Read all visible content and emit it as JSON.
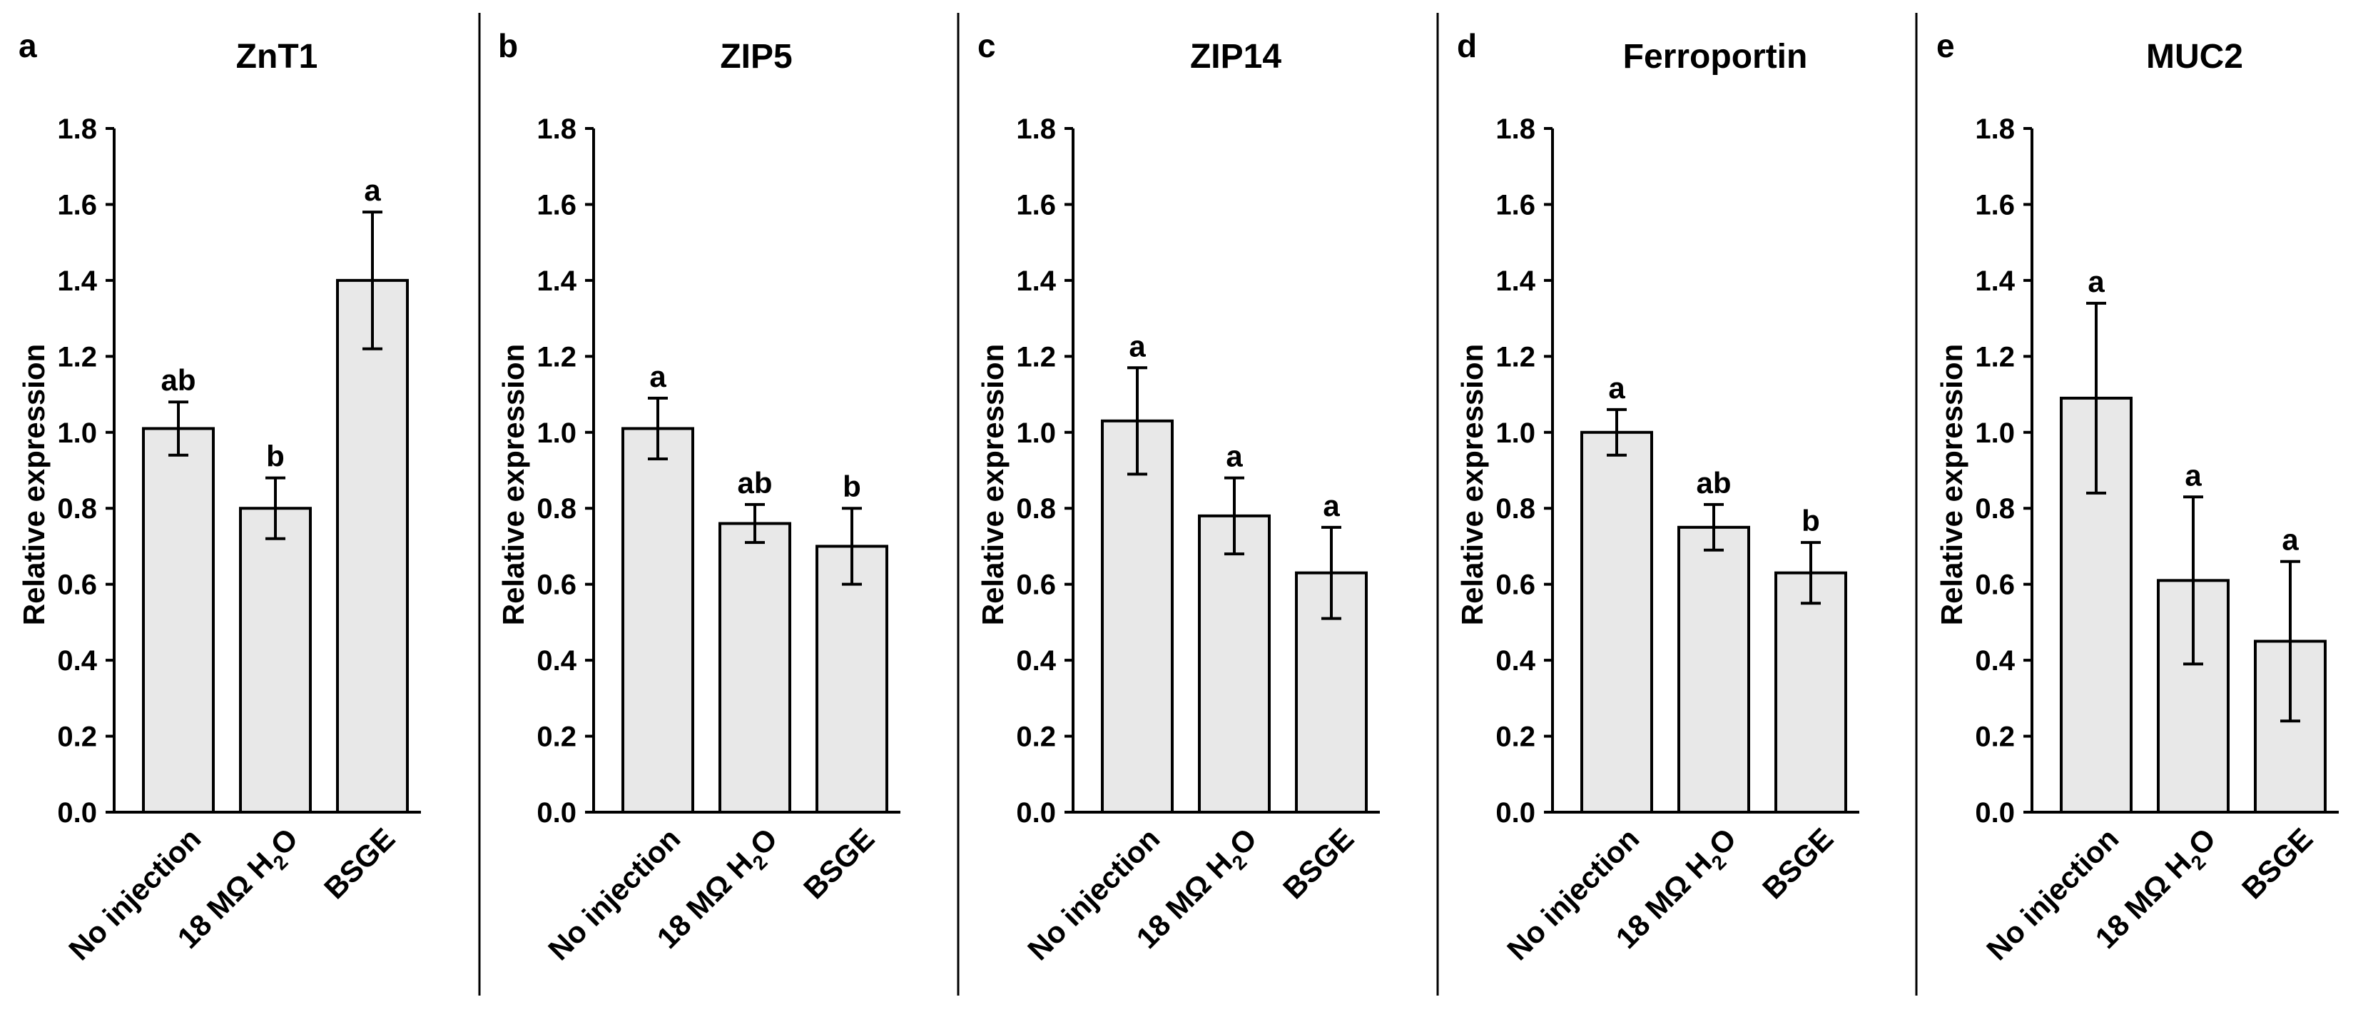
{
  "chart_data": [
    {
      "type": "bar",
      "panel_letter": "a",
      "title": "ZnT1",
      "ylabel": "Relative expression",
      "xlabel": "",
      "ylim": [
        0,
        1.8
      ],
      "yticks": [
        "0.0",
        "0.2",
        "0.4",
        "0.6",
        "0.8",
        "1.0",
        "1.2",
        "1.4",
        "1.6",
        "1.8"
      ],
      "categories": [
        "No injection",
        "18 MΩ H",
        "BSGE"
      ],
      "category_suffix": [
        "",
        "O",
        ""
      ],
      "category_subscript": [
        "",
        "2",
        ""
      ],
      "values": [
        1.01,
        0.8,
        1.4
      ],
      "errors": [
        0.07,
        0.08,
        0.18
      ],
      "letters": [
        "ab",
        "b",
        "a"
      ]
    },
    {
      "type": "bar",
      "panel_letter": "b",
      "title": "ZIP5",
      "ylabel": "Relative expression",
      "xlabel": "",
      "ylim": [
        0,
        1.8
      ],
      "yticks": [
        "0.0",
        "0.2",
        "0.4",
        "0.6",
        "0.8",
        "1.0",
        "1.2",
        "1.4",
        "1.6",
        "1.8"
      ],
      "categories": [
        "No injection",
        "18 MΩ H",
        "BSGE"
      ],
      "category_suffix": [
        "",
        "O",
        ""
      ],
      "category_subscript": [
        "",
        "2",
        ""
      ],
      "values": [
        1.01,
        0.76,
        0.7
      ],
      "errors": [
        0.08,
        0.05,
        0.1
      ],
      "letters": [
        "a",
        "ab",
        "b"
      ]
    },
    {
      "type": "bar",
      "panel_letter": "c",
      "title": "ZIP14",
      "ylabel": "Relative expression",
      "xlabel": "",
      "ylim": [
        0,
        1.8
      ],
      "yticks": [
        "0.0",
        "0.2",
        "0.4",
        "0.6",
        "0.8",
        "1.0",
        "1.2",
        "1.4",
        "1.6",
        "1.8"
      ],
      "categories": [
        "No injection",
        "18 MΩ H",
        "BSGE"
      ],
      "category_suffix": [
        "",
        "O",
        ""
      ],
      "category_subscript": [
        "",
        "2",
        ""
      ],
      "values": [
        1.03,
        0.78,
        0.63
      ],
      "errors": [
        0.14,
        0.1,
        0.12
      ],
      "letters": [
        "a",
        "a",
        "a"
      ]
    },
    {
      "type": "bar",
      "panel_letter": "d",
      "title": "Ferroportin",
      "ylabel": "Relative expression",
      "xlabel": "",
      "ylim": [
        0,
        1.8
      ],
      "yticks": [
        "0.0",
        "0.2",
        "0.4",
        "0.6",
        "0.8",
        "1.0",
        "1.2",
        "1.4",
        "1.6",
        "1.8"
      ],
      "categories": [
        "No injection",
        "18 MΩ H",
        "BSGE"
      ],
      "category_suffix": [
        "",
        "O",
        ""
      ],
      "category_subscript": [
        "",
        "2",
        ""
      ],
      "values": [
        1.0,
        0.75,
        0.63
      ],
      "errors": [
        0.06,
        0.06,
        0.08
      ],
      "letters": [
        "a",
        "ab",
        "b"
      ]
    },
    {
      "type": "bar",
      "panel_letter": "e",
      "title": "MUC2",
      "ylabel": "Relative expression",
      "xlabel": "",
      "ylim": [
        0,
        1.8
      ],
      "yticks": [
        "0.0",
        "0.2",
        "0.4",
        "0.6",
        "0.8",
        "1.0",
        "1.2",
        "1.4",
        "1.6",
        "1.8"
      ],
      "categories": [
        "No injection",
        "18 MΩ H",
        "BSGE"
      ],
      "category_suffix": [
        "",
        "O",
        ""
      ],
      "category_subscript": [
        "",
        "2",
        ""
      ],
      "values": [
        1.09,
        0.61,
        0.45
      ],
      "errors": [
        0.25,
        0.22,
        0.21
      ],
      "letters": [
        "a",
        "a",
        "a"
      ]
    }
  ]
}
